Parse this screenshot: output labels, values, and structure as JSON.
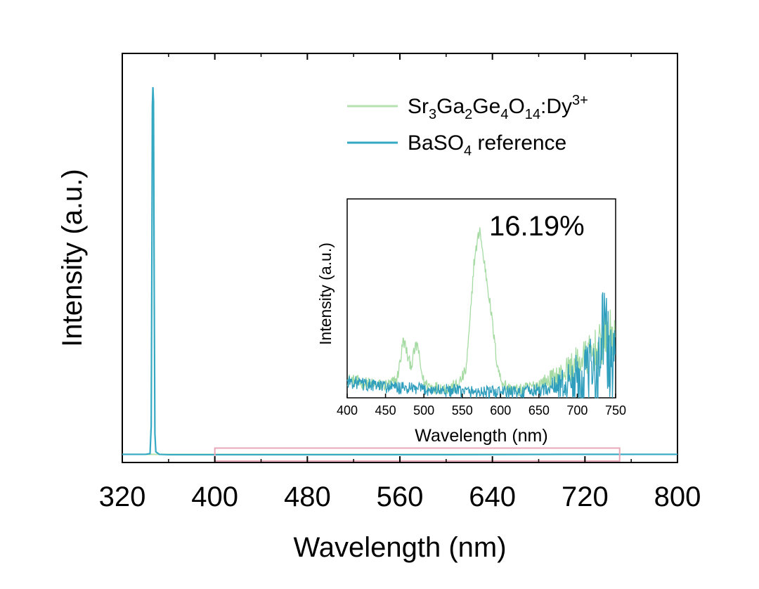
{
  "chart_data": [
    {
      "id": "main",
      "type": "line",
      "title": "",
      "xlabel": "Wavelength (nm)",
      "ylabel": "Intensity (a.u.)",
      "xlim": [
        320,
        800
      ],
      "ylim": [
        0,
        1
      ],
      "xticks": [
        320,
        400,
        480,
        560,
        640,
        720,
        800
      ],
      "legend": {
        "position": "top-right",
        "entries": [
          {
            "series": "sample",
            "parts": [
              {
                "t": "Sr",
                "s": ""
              },
              {
                "t": "3",
                "s": "sub"
              },
              {
                "t": "Ga",
                "s": ""
              },
              {
                "t": "2",
                "s": "sub"
              },
              {
                "t": "Ge",
                "s": ""
              },
              {
                "t": "4",
                "s": "sub"
              },
              {
                "t": "O",
                "s": ""
              },
              {
                "t": "14",
                "s": "sub"
              },
              {
                "t": ":Dy",
                "s": ""
              },
              {
                "t": "3+",
                "s": "sup"
              }
            ]
          },
          {
            "series": "reference",
            "parts": [
              {
                "t": "BaSO",
                "s": ""
              },
              {
                "t": "4",
                "s": "sub"
              },
              {
                "t": " reference",
                "s": ""
              }
            ]
          }
        ]
      },
      "series": [
        {
          "name": "BaSO4 reference",
          "key": "reference",
          "color": "#35a9c3",
          "x": [
            320,
            340,
            344,
            345,
            345.6,
            346,
            346.5,
            347,
            347.6,
            348.2,
            349,
            352,
            360,
            400,
            500,
            600,
            700,
            800
          ],
          "y": [
            0.003,
            0.003,
            0.005,
            0.08,
            0.55,
            0.95,
            1.0,
            0.96,
            0.45,
            0.06,
            0.01,
            0.003,
            0.002,
            0.002,
            0.002,
            0.002,
            0.003,
            0.003
          ]
        },
        {
          "name": "Sr3Ga2Ge4O14:Dy3+",
          "key": "sample",
          "color": "#b6e2b0",
          "x": [
            320,
            800
          ],
          "y": [
            0.003,
            0.003
          ]
        }
      ],
      "zoom_box": {
        "x_range": [
          400,
          750
        ],
        "y_range": [
          -0.015,
          0.02
        ],
        "color": "#e8a8b8"
      }
    },
    {
      "id": "inset",
      "type": "line",
      "title": "",
      "annotation": "16.19%",
      "xlabel": "Wavelength (nm)",
      "ylabel": "Intensity (a.u.)",
      "xlim": [
        400,
        750
      ],
      "ylim": [
        0,
        1
      ],
      "xticks": [
        400,
        450,
        500,
        550,
        600,
        650,
        700,
        750
      ],
      "series": [
        {
          "name": "Sr3Ga2Ge4O14:Dy3+",
          "color": "#a5dba3",
          "x": [
            400,
            420,
            440,
            455,
            465,
            470,
            473,
            476,
            480,
            484,
            488,
            492,
            495,
            500,
            510,
            530,
            545,
            555,
            560,
            565,
            570,
            573,
            576,
            580,
            585,
            590,
            595,
            600,
            610,
            625,
            640,
            660,
            680,
            700,
            715,
            730,
            745,
            750
          ],
          "y": [
            0.1,
            0.08,
            0.07,
            0.07,
            0.1,
            0.22,
            0.31,
            0.28,
            0.2,
            0.18,
            0.26,
            0.29,
            0.18,
            0.08,
            0.06,
            0.05,
            0.07,
            0.15,
            0.4,
            0.72,
            0.85,
            0.92,
            0.8,
            0.7,
            0.55,
            0.38,
            0.2,
            0.1,
            0.05,
            0.04,
            0.06,
            0.09,
            0.13,
            0.19,
            0.23,
            0.28,
            0.35,
            0.3
          ]
        },
        {
          "name": "BaSO4 reference",
          "color": "#2f9fbd",
          "x": [
            400,
            425,
            450,
            475,
            500,
            525,
            550,
            575,
            600,
            625,
            650,
            670,
            690,
            710,
            720,
            730,
            735,
            740,
            745,
            750
          ],
          "y": [
            0.09,
            0.07,
            0.06,
            0.05,
            0.045,
            0.04,
            0.035,
            0.03,
            0.03,
            0.03,
            0.04,
            0.06,
            0.08,
            0.11,
            0.14,
            0.2,
            0.48,
            0.22,
            0.16,
            0.18
          ]
        }
      ]
    }
  ]
}
